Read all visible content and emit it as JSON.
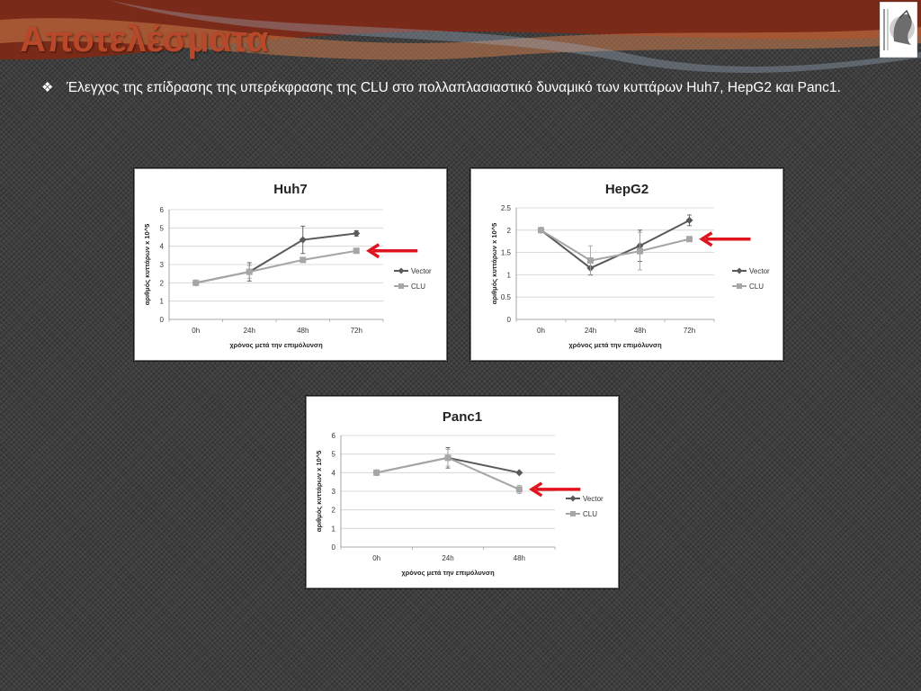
{
  "slide": {
    "title": "Αποτελέσματα",
    "bullet_icon": "diamond-bullet-icon",
    "bullet_text": "Έλεγχος της επίδρασης της υπερέκφρασης της CLU στο πολλαπλασιαστικό δυναμικό των κυττάρων Huh7, HepG2 και Panc1.",
    "logo_icon": "university-of-athens-logo",
    "title_color": "#b8482a",
    "arrow_color": "#e0141e"
  },
  "chart_data": [
    {
      "type": "line",
      "title": "Huh7",
      "xlabel": "χρόνος μετά την επιμόλυνση",
      "ylabel": "αριθμός κυττάρων x 10^5",
      "categories": [
        "0h",
        "24h",
        "48h",
        "72h"
      ],
      "yticks": [
        "0",
        "1",
        "2",
        "3",
        "4",
        "5",
        "6"
      ],
      "ylim": [
        0,
        6
      ],
      "grid": true,
      "legend": "right",
      "series": [
        {
          "name": "Vector",
          "values": [
            2.0,
            2.6,
            4.35,
            4.7
          ],
          "errors": [
            0,
            0.5,
            0.75,
            0.15
          ],
          "color": "#595959",
          "marker": "diamond"
        },
        {
          "name": "CLU",
          "values": [
            2.0,
            2.6,
            3.25,
            3.75
          ],
          "errors": [
            0,
            0.35,
            0.1,
            0.08
          ],
          "color": "#a6a6a6",
          "marker": "square"
        }
      ],
      "highlight": "CLU"
    },
    {
      "type": "line",
      "title": "HepG2",
      "xlabel": "χρόνος μετά την επιμόλυνση",
      "ylabel": "αριθμός κυττάρων x 10^5",
      "categories": [
        "0h",
        "24h",
        "48h",
        "72h"
      ],
      "yticks": [
        "0",
        "0.5",
        "1",
        "1.5",
        "2",
        "2.5"
      ],
      "ylim": [
        0,
        2.5
      ],
      "grid": true,
      "legend": "right",
      "series": [
        {
          "name": "Vector",
          "values": [
            2.0,
            1.15,
            1.65,
            2.22
          ],
          "errors": [
            0,
            0.15,
            0.35,
            0.12
          ],
          "color": "#595959",
          "marker": "diamond"
        },
        {
          "name": "CLU",
          "values": [
            2.0,
            1.32,
            1.53,
            1.8
          ],
          "errors": [
            0,
            0.33,
            0.42,
            0.03
          ],
          "color": "#a6a6a6",
          "marker": "square"
        }
      ],
      "highlight": "CLU"
    },
    {
      "type": "line",
      "title": "Panc1",
      "xlabel": "χρόνος μετά την επιμόλυνση",
      "ylabel": "αριθμός κυττάρων x 10^5",
      "categories": [
        "0h",
        "24h",
        "48h"
      ],
      "yticks": [
        "0",
        "1",
        "2",
        "3",
        "4",
        "5",
        "6"
      ],
      "ylim": [
        0,
        6
      ],
      "grid": true,
      "legend": "right",
      "series": [
        {
          "name": "Vector",
          "values": [
            4.0,
            4.8,
            4.0
          ],
          "errors": [
            0,
            0.55,
            0
          ],
          "color": "#595959",
          "marker": "diamond"
        },
        {
          "name": "CLU",
          "values": [
            4.0,
            4.8,
            3.1
          ],
          "errors": [
            0,
            0.45,
            0.22
          ],
          "color": "#a6a6a6",
          "marker": "square"
        }
      ],
      "highlight": "CLU"
    }
  ]
}
